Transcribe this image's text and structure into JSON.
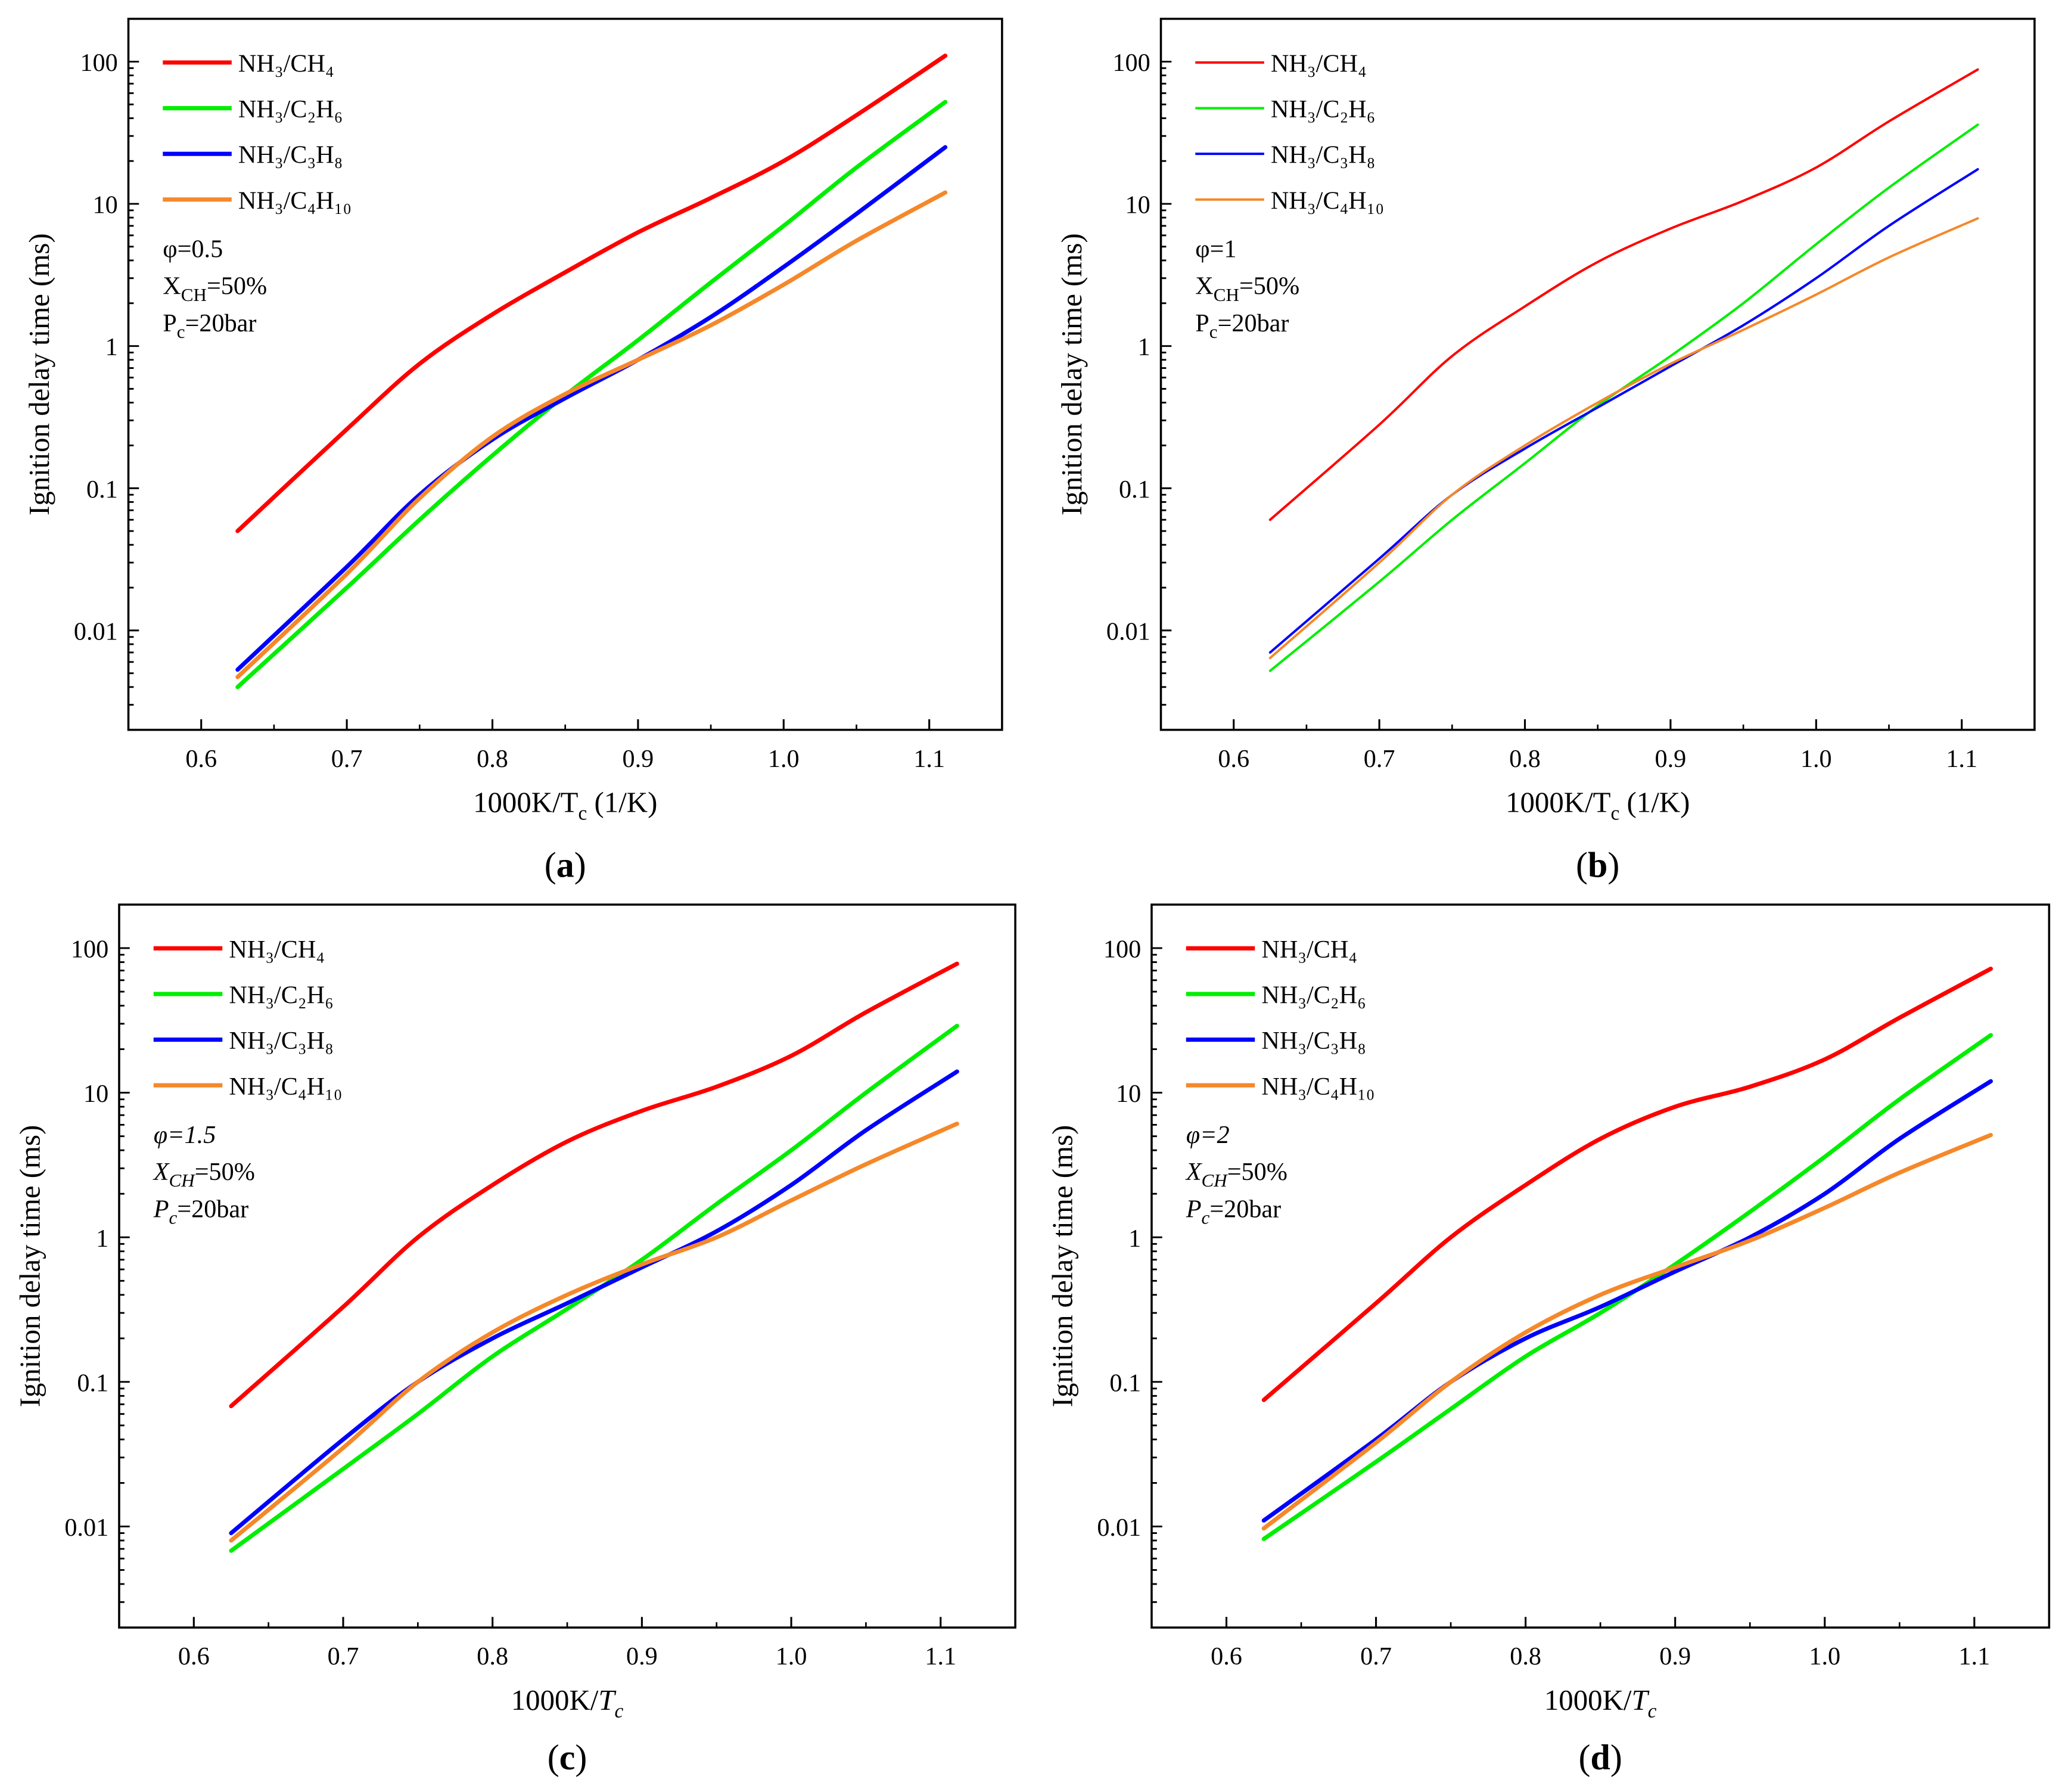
{
  "chart_data": [
    {
      "type": "line",
      "panel_label": "(a)",
      "panel_letter": "a",
      "ylabel": "Ignition delay time (ms)",
      "xlabel": {
        "main": "1000K/T",
        "sub": "c",
        "rest": " (1/K)",
        "italic": false
      },
      "yscale": "log",
      "xlim": [
        0.55,
        1.15
      ],
      "ylim": [
        0.002,
        200
      ],
      "xticks": [
        "0.6",
        "0.7",
        "0.8",
        "0.9",
        "1.0",
        "1.1"
      ],
      "yticks": [
        "0.01",
        "0.1",
        "1",
        "10",
        "100"
      ],
      "legend_position": "top-left",
      "annotations": [
        {
          "main": "φ=0.5",
          "sub": "",
          "rest": ""
        },
        {
          "main": "X",
          "sub": "CH",
          "rest": "=50%"
        },
        {
          "main": "P",
          "sub": "c",
          "rest": "=20bar"
        }
      ],
      "annotation_italic": false,
      "line_style": "thick",
      "x": [
        0.625,
        0.7,
        0.75,
        0.8,
        0.85,
        0.9,
        0.95,
        1.0,
        1.05,
        1.111
      ],
      "series": [
        {
          "name": "NH₃/CH₄",
          "color": "#ff0000",
          "values": [
            0.05,
            0.26,
            0.75,
            1.67,
            3.3,
            6.3,
            11,
            20,
            42,
            110
          ]
        },
        {
          "name": "NH₃/C₂H₆",
          "color": "#00ee00",
          "values": [
            0.004,
            0.02,
            0.06,
            0.17,
            0.45,
            1.1,
            2.8,
            7,
            18,
            52
          ]
        },
        {
          "name": "NH₃/C₃H₈",
          "color": "#0000ff",
          "values": [
            0.0053,
            0.028,
            0.09,
            0.22,
            0.43,
            0.8,
            1.6,
            3.6,
            8.5,
            25
          ]
        },
        {
          "name": "NH₃/C₄H₁₀",
          "color": "#f5882a",
          "values": [
            0.0047,
            0.025,
            0.085,
            0.23,
            0.46,
            0.8,
            1.4,
            2.7,
            5.5,
            12
          ]
        }
      ]
    },
    {
      "type": "line",
      "panel_label": "(b)",
      "panel_letter": "b",
      "ylabel": "Ignition delay time (ms)",
      "xlabel": {
        "main": "1000K/T",
        "sub": "c",
        "rest": " (1/K)",
        "italic": false
      },
      "yscale": "log",
      "xlim": [
        0.55,
        1.15
      ],
      "ylim": [
        0.002,
        200
      ],
      "xticks": [
        "0.6",
        "0.7",
        "0.8",
        "0.9",
        "1.0",
        "1.1"
      ],
      "yticks": [
        "0.01",
        "0.1",
        "1",
        "10",
        "100"
      ],
      "legend_position": "top-left",
      "annotations": [
        {
          "main": "φ=1",
          "sub": "",
          "rest": ""
        },
        {
          "main": "X",
          "sub": "CH",
          "rest": "=50%"
        },
        {
          "main": "P",
          "sub": "c",
          "rest": "=20bar"
        }
      ],
      "annotation_italic": false,
      "line_style": "thin",
      "x": [
        0.625,
        0.7,
        0.75,
        0.8,
        0.85,
        0.9,
        0.95,
        1.0,
        1.05,
        1.111
      ],
      "series": [
        {
          "name": "NH₃/CH₄",
          "color": "#ff0000",
          "values": [
            0.06,
            0.28,
            0.85,
            1.9,
            3.9,
            6.7,
            10.5,
            18,
            38,
            88
          ]
        },
        {
          "name": "NH₃/C₂H₆",
          "color": "#00ee00",
          "values": [
            0.0052,
            0.022,
            0.06,
            0.15,
            0.38,
            0.85,
            2.0,
            5.2,
            13,
            36
          ]
        },
        {
          "name": "NH₃/C₃H₈",
          "color": "#0000ff",
          "values": [
            0.007,
            0.032,
            0.09,
            0.19,
            0.37,
            0.72,
            1.4,
            3.0,
            7,
            17.5
          ]
        },
        {
          "name": "NH₃/C₄H₁₀",
          "color": "#f5882a",
          "values": [
            0.0064,
            0.03,
            0.09,
            0.2,
            0.4,
            0.75,
            1.3,
            2.3,
            4.2,
            7.9
          ]
        }
      ]
    },
    {
      "type": "line",
      "panel_label": "(c)",
      "panel_letter": "c",
      "ylabel": "Ignition delay time (ms)",
      "xlabel": {
        "main": "1000K/",
        "sub": "c",
        "rest": "",
        "italic": true,
        "italic_part": "T"
      },
      "yscale": "log",
      "xlim": [
        0.55,
        1.15
      ],
      "ylim": [
        0.002,
        200
      ],
      "xticks": [
        "0.6",
        "0.7",
        "0.8",
        "0.9",
        "1.0",
        "1.1"
      ],
      "yticks": [
        "0.01",
        "0.1",
        "1",
        "10",
        "100"
      ],
      "legend_position": "top-left",
      "annotations": [
        {
          "main": "φ=1.5",
          "sub": "",
          "rest": ""
        },
        {
          "main": "X",
          "sub": "CH",
          "rest": "=50%"
        },
        {
          "main": "P",
          "sub": "c",
          "rest": "=20bar"
        }
      ],
      "annotation_italic": true,
      "line_style": "thick",
      "x": [
        0.625,
        0.7,
        0.75,
        0.8,
        0.85,
        0.9,
        0.95,
        1.0,
        1.05,
        1.111
      ],
      "series": [
        {
          "name": "NH₃/CH₄",
          "color": "#ff0000",
          "values": [
            0.068,
            0.33,
            1.0,
            2.3,
            4.6,
            7.5,
            11,
            18,
            36,
            78
          ]
        },
        {
          "name": "NH₃/C₂H₆",
          "color": "#00ee00",
          "values": [
            0.0068,
            0.025,
            0.06,
            0.15,
            0.32,
            0.7,
            1.7,
            4.0,
            10,
            29
          ]
        },
        {
          "name": "NH₃/C₃H₈",
          "color": "#0000ff",
          "values": [
            0.009,
            0.04,
            0.1,
            0.2,
            0.35,
            0.62,
            1.1,
            2.3,
            5.5,
            14
          ]
        },
        {
          "name": "NH₃/C₄H₁₀",
          "color": "#f5882a",
          "values": [
            0.008,
            0.035,
            0.1,
            0.22,
            0.4,
            0.65,
            1.0,
            1.8,
            3.2,
            6.1
          ]
        }
      ]
    },
    {
      "type": "line",
      "panel_label": "(d)",
      "panel_letter": "d",
      "ylabel": "Ignition delay time (ms)",
      "xlabel": {
        "main": "1000K/",
        "sub": "c",
        "rest": "",
        "italic": true,
        "italic_part": "T"
      },
      "yscale": "log",
      "xlim": [
        0.55,
        1.15
      ],
      "ylim": [
        0.002,
        200
      ],
      "xticks": [
        "0.6",
        "0.7",
        "0.8",
        "0.9",
        "1.0",
        "1.1"
      ],
      "yticks": [
        "0.01",
        "0.1",
        "1",
        "10",
        "100"
      ],
      "legend_position": "top-left",
      "annotations": [
        {
          "main": "φ=2",
          "sub": "",
          "rest": ""
        },
        {
          "main": "X",
          "sub": "CH",
          "rest": "=50%"
        },
        {
          "main": "P",
          "sub": "c",
          "rest": "=20bar"
        }
      ],
      "annotation_italic": true,
      "line_style": "thick",
      "x": [
        0.625,
        0.7,
        0.75,
        0.8,
        0.85,
        0.9,
        0.95,
        1.0,
        1.05,
        1.111
      ],
      "series": [
        {
          "name": "NH₃/CH₄",
          "color": "#ff0000",
          "values": [
            0.075,
            0.35,
            1.0,
            2.3,
            4.8,
            8.0,
            11,
            17,
            33,
            72
          ]
        },
        {
          "name": "NH₃/C₂H₆",
          "color": "#00ee00",
          "values": [
            0.0082,
            0.028,
            0.065,
            0.15,
            0.3,
            0.65,
            1.5,
            3.6,
            9,
            25
          ]
        },
        {
          "name": "NH₃/C₃H₈",
          "color": "#0000ff",
          "values": [
            0.011,
            0.04,
            0.1,
            0.2,
            0.33,
            0.58,
            1.0,
            2.0,
            4.8,
            12
          ]
        },
        {
          "name": "NH₃/C₄H₁₀",
          "color": "#f5882a",
          "values": [
            0.0097,
            0.038,
            0.1,
            0.22,
            0.4,
            0.62,
            0.95,
            1.6,
            2.8,
            5.1
          ]
        }
      ]
    }
  ]
}
